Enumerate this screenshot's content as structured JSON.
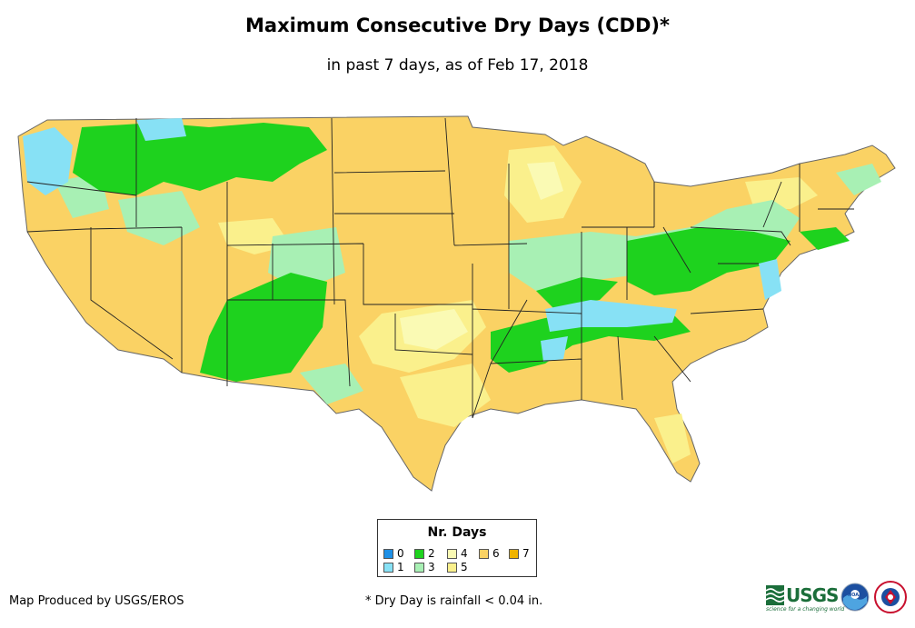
{
  "title": "Maximum Consecutive Dry Days (CDD)*",
  "subtitle": "in past 7 days, as of Feb 17, 2018",
  "legend": {
    "title": "Nr. Days",
    "items": [
      {
        "label": "0",
        "color": "#1e90e6"
      },
      {
        "label": "1",
        "color": "#87e1f5"
      },
      {
        "label": "2",
        "color": "#1ed21e"
      },
      {
        "label": "3",
        "color": "#a8f0b4"
      },
      {
        "label": "4",
        "color": "#fafab4"
      },
      {
        "label": "5",
        "color": "#faf08c"
      },
      {
        "label": "6",
        "color": "#fad264"
      },
      {
        "label": "7",
        "color": "#f0b400"
      }
    ]
  },
  "credit": "Map Produced by USGS/EROS",
  "footnote": "* Dry Day is rainfall < 0.04 in.",
  "logos": {
    "usgs_text": "USGS",
    "usgs_tagline": "science for a changing world",
    "noaa_text": "NOAA"
  }
}
